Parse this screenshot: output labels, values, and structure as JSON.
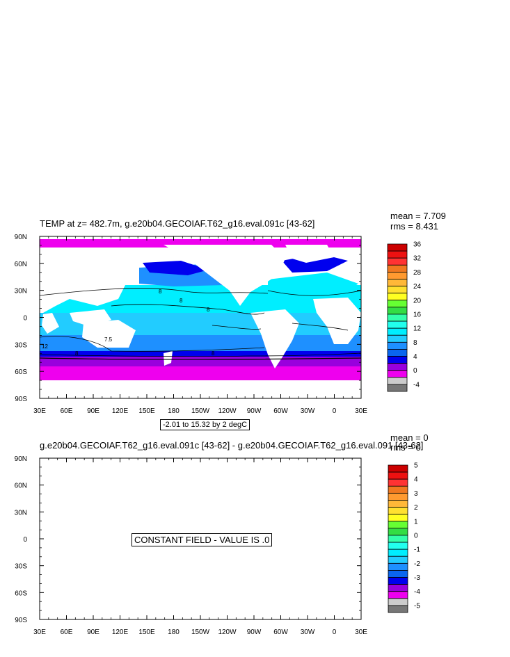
{
  "top_panel": {
    "title": "TEMP at z= 482.7m, g.e20b04.GECOIAF.T62_g16.eval.091c [43-62]",
    "mean": "mean = 7.709",
    "rms": "rms = 8.431",
    "contour_info": "-2.01 to 15.32 by 2 degC"
  },
  "bottom_panel": {
    "title": "g.e20b04.GECOIAF.T62_g16.eval.091c [43-62] - g.e20b04.GECOIAF.T62_g16.eval.091 [43-62]",
    "mean": "mean = 0",
    "rms": "rms = 0",
    "constant_message": "CONSTANT FIELD - VALUE IS .0"
  },
  "chart_data": [
    {
      "type": "heatmap",
      "title": "TEMP at z= 482.7m, g.e20b04.GECOIAF.T62_g16.eval.091c [43-62]",
      "x_ticks": [
        "30E",
        "60E",
        "90E",
        "120E",
        "150E",
        "180",
        "150W",
        "120W",
        "90W",
        "60W",
        "30W",
        "0",
        "30E"
      ],
      "y_ticks": [
        "90N",
        "60N",
        "30N",
        "0",
        "30S",
        "60S",
        "90S"
      ],
      "colorbar_labels": [
        "36",
        "32",
        "28",
        "24",
        "20",
        "16",
        "12",
        "8",
        "4",
        "0",
        "-4"
      ],
      "colorbar_colors": [
        "#cc0000",
        "#ee1111",
        "#ff3333",
        "#f07820",
        "#ff9a30",
        "#ffb838",
        "#ffe030",
        "#ffff22",
        "#66ff33",
        "#33dd44",
        "#33ffaa",
        "#22ffee",
        "#00eeff",
        "#22ccff",
        "#1e90ff",
        "#0a66ee",
        "#0000ee",
        "#9900dd",
        "#ee00ee",
        "#cccccc",
        "#777777"
      ],
      "contour_labels": [
        "8",
        "8",
        "8",
        "8",
        "7.5",
        "12",
        "8"
      ],
      "mean": 7.709,
      "rms": 8.431,
      "contour_range": [
        -2.01,
        15.32
      ],
      "contour_interval": 2
    },
    {
      "type": "heatmap",
      "title": "g.e20b04.GECOIAF.T62_g16.eval.091c [43-62] - g.e20b04.GECOIAF.T62_g16.eval.091 [43-62]",
      "x_ticks": [
        "30E",
        "60E",
        "90E",
        "120E",
        "150E",
        "180",
        "150W",
        "120W",
        "90W",
        "60W",
        "30W",
        "0",
        "30E"
      ],
      "y_ticks": [
        "90N",
        "60N",
        "30N",
        "0",
        "30S",
        "60S",
        "90S"
      ],
      "colorbar_labels": [
        "5",
        "4",
        "3",
        "2",
        "1",
        "0",
        "-1",
        "-2",
        "-3",
        "-4",
        "-5"
      ],
      "colorbar_colors": [
        "#cc0000",
        "#ee1111",
        "#ff3333",
        "#f07820",
        "#ff9a30",
        "#ffb838",
        "#ffe030",
        "#ffff22",
        "#66ff33",
        "#33dd44",
        "#33ffaa",
        "#22ffee",
        "#00eeff",
        "#22ccff",
        "#1e90ff",
        "#0a66ee",
        "#0000ee",
        "#9900dd",
        "#ee00ee",
        "#cccccc",
        "#777777"
      ],
      "mean": 0,
      "rms": 0,
      "constant_value": 0.0
    }
  ]
}
